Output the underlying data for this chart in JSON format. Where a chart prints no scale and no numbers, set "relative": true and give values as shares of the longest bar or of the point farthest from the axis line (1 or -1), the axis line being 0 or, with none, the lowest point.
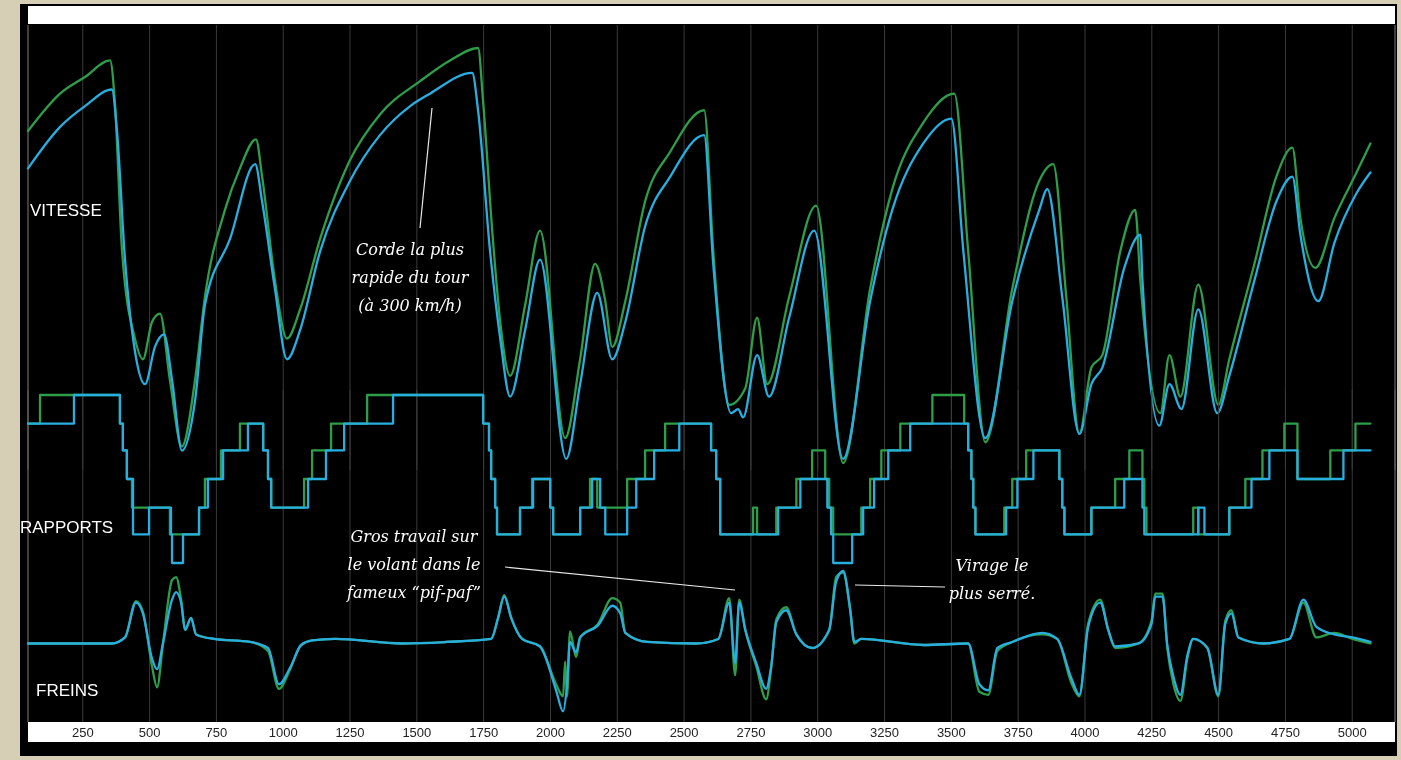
{
  "chart_data": [
    {
      "type": "line",
      "ylabel": "VITESSE",
      "relative": true,
      "xlim": [
        45,
        5160
      ],
      "xticks": [
        250,
        500,
        750,
        1000,
        1250,
        1500,
        1750,
        2000,
        2250,
        2500,
        2750,
        3000,
        3250,
        3500,
        3750,
        4000,
        4250,
        4500,
        4750,
        5000
      ],
      "tick_labels": false,
      "grid": "x",
      "annotations": [
        "Corde la plus\nrapide du tour\n(à 300 km/h)"
      ],
      "series": [
        {
          "color": "#2e9e4a",
          "x": [
            45,
            165,
            258,
            352,
            370,
            397,
            445,
            475,
            509,
            539,
            576,
            621,
            670,
            707,
            782,
            838,
            898,
            921,
            969,
            1014,
            1063,
            1138,
            1250,
            1362,
            1512,
            1624,
            1729,
            1748,
            1782,
            1812,
            1849,
            1905,
            1961,
            2055,
            2111,
            2167,
            2205,
            2231,
            2280,
            2354,
            2448,
            2575,
            2609,
            2669,
            2729,
            2773,
            2811,
            2893,
            2994,
            3095,
            3196,
            3279,
            3395,
            3511,
            3563,
            3627,
            3728,
            3829,
            3881,
            3930,
            3979,
            4024,
            4065,
            4132,
            4188,
            4207,
            4282,
            4316,
            4357,
            4424,
            4499,
            4540,
            4634,
            4716,
            4776,
            4806,
            4862,
            4933,
            5016,
            5068
          ],
          "values": [
            0.8,
            0.89,
            0.93,
            0.97,
            0.87,
            0.51,
            0.3,
            0.25,
            0.34,
            0.36,
            0.2,
            0.04,
            0.2,
            0.4,
            0.61,
            0.71,
            0.78,
            0.69,
            0.44,
            0.3,
            0.37,
            0.54,
            0.73,
            0.84,
            0.92,
            0.97,
            1.0,
            0.87,
            0.56,
            0.34,
            0.21,
            0.38,
            0.56,
            0.06,
            0.25,
            0.48,
            0.39,
            0.28,
            0.39,
            0.63,
            0.75,
            0.85,
            0.51,
            0.14,
            0.18,
            0.35,
            0.19,
            0.4,
            0.62,
            0.0,
            0.42,
            0.66,
            0.82,
            0.89,
            0.51,
            0.05,
            0.42,
            0.68,
            0.72,
            0.4,
            0.07,
            0.23,
            0.26,
            0.51,
            0.61,
            0.44,
            0.12,
            0.26,
            0.16,
            0.43,
            0.14,
            0.25,
            0.48,
            0.69,
            0.76,
            0.59,
            0.47,
            0.59,
            0.7,
            0.77
          ]
        },
        {
          "color": "#29aee0",
          "x": [
            45,
            165,
            258,
            359,
            378,
            408,
            445,
            483,
            520,
            554,
            584,
            621,
            670,
            707,
            801,
            895,
            921,
            969,
            1014,
            1063,
            1138,
            1250,
            1362,
            1475,
            1549,
            1707,
            1729,
            1774,
            1812,
            1849,
            1905,
            1961,
            2059,
            2111,
            2175,
            2231,
            2280,
            2354,
            2448,
            2575,
            2609,
            2676,
            2702,
            2721,
            2773,
            2818,
            2893,
            2987,
            3095,
            3196,
            3279,
            3395,
            3500,
            3545,
            3627,
            3728,
            3829,
            3859,
            3915,
            3979,
            4024,
            4065,
            4147,
            4207,
            4215,
            4278,
            4316,
            4361,
            4424,
            4495,
            4540,
            4634,
            4716,
            4776,
            4806,
            4873,
            4933,
            5016,
            5068
          ],
          "values": [
            0.71,
            0.81,
            0.86,
            0.9,
            0.8,
            0.49,
            0.27,
            0.19,
            0.28,
            0.31,
            0.2,
            0.03,
            0.15,
            0.38,
            0.54,
            0.72,
            0.63,
            0.42,
            0.25,
            0.32,
            0.51,
            0.68,
            0.79,
            0.86,
            0.89,
            0.94,
            0.85,
            0.51,
            0.3,
            0.16,
            0.32,
            0.49,
            0.01,
            0.19,
            0.41,
            0.25,
            0.34,
            0.57,
            0.69,
            0.79,
            0.48,
            0.12,
            0.13,
            0.11,
            0.26,
            0.16,
            0.35,
            0.56,
            0.01,
            0.39,
            0.61,
            0.77,
            0.83,
            0.51,
            0.06,
            0.39,
            0.61,
            0.66,
            0.4,
            0.07,
            0.19,
            0.23,
            0.47,
            0.55,
            0.44,
            0.09,
            0.19,
            0.13,
            0.37,
            0.12,
            0.21,
            0.44,
            0.63,
            0.69,
            0.55,
            0.39,
            0.53,
            0.65,
            0.7
          ]
        }
      ]
    },
    {
      "type": "step",
      "ylabel": "RAPPORTS",
      "relative": true,
      "xlim": [
        45,
        5160
      ],
      "xticks": [
        250,
        500,
        750,
        1000,
        1250,
        1500,
        1750,
        2000,
        2250,
        2500,
        2750,
        3000,
        3250,
        3500,
        3750,
        4000,
        4250,
        4500,
        4750,
        5000
      ],
      "tick_labels": false,
      "grid": "x",
      "series": [
        {
          "color": "#2e9e4a",
          "x": [
            45,
            90,
            389,
            400,
            415,
            434,
            576,
            685,
            707,
            767,
            838,
            925,
            943,
            955,
            1078,
            1108,
            1179,
            1314,
            1748,
            1770,
            1778,
            1793,
            1800,
            1886,
            1931,
            1999,
            2010,
            2111,
            2148,
            2175,
            2287,
            2354,
            2429,
            2601,
            2620,
            2635,
            2758,
            2773,
            2845,
            2920,
            2979,
            3028,
            3043,
            3058,
            3163,
            3196,
            3238,
            3309,
            3429,
            3548,
            3563,
            3575,
            3582,
            3590,
            3698,
            3728,
            3780,
            3904,
            3915,
            3923,
            4024,
            4113,
            4166,
            4215,
            4222,
            4230,
            4405,
            4424,
            4540,
            4600,
            4664,
            4746,
            4795,
            4918,
            5012,
            5068
          ],
          "values": [
            0.83,
            1,
            0.83,
            0.67,
            0.5,
            0.33,
            0.17,
            0.33,
            0.5,
            0.67,
            0.83,
            0.67,
            0.5,
            0.33,
            0.5,
            0.67,
            0.83,
            1,
            0.83,
            0.67,
            0.5,
            0.33,
            0.17,
            0.33,
            0.5,
            0.33,
            0.17,
            0.33,
            0.5,
            0.33,
            0.5,
            0.67,
            0.83,
            0.67,
            0.5,
            0.17,
            0.33,
            0.17,
            0.33,
            0.5,
            0.67,
            0.5,
            0.33,
            0.17,
            0.33,
            0.5,
            0.67,
            0.83,
            1,
            0.83,
            0.67,
            0.5,
            0.33,
            0.17,
            0.33,
            0.5,
            0.67,
            0.5,
            0.33,
            0.17,
            0.33,
            0.5,
            0.67,
            0.5,
            0.33,
            0.17,
            0.33,
            0.17,
            0.33,
            0.5,
            0.67,
            0.83,
            0.5,
            0.67,
            0.83,
            0.83
          ]
        },
        {
          "color": "#29aee0",
          "x": [
            45,
            217,
            389,
            400,
            415,
            438,
            498,
            580,
            584,
            625,
            685,
            718,
            775,
            868,
            925,
            943,
            955,
            1093,
            1160,
            1228,
            1411,
            1748,
            1770,
            1778,
            1793,
            1800,
            1886,
            1935,
            1999,
            2010,
            2111,
            2156,
            2186,
            2205,
            2287,
            2321,
            2388,
            2482,
            2601,
            2620,
            2635,
            2852,
            2935,
            3036,
            3050,
            3058,
            3129,
            3170,
            3211,
            3264,
            3346,
            3563,
            3575,
            3582,
            3590,
            3705,
            3747,
            3807,
            3904,
            3915,
            3923,
            4024,
            4147,
            4215,
            4222,
            4424,
            4447,
            4540,
            4623,
            4690,
            4795,
            4967,
            5068
          ],
          "values": [
            0.83,
            1,
            0.83,
            0.67,
            0.5,
            0.17,
            0.33,
            0.17,
            0,
            0.17,
            0.33,
            0.5,
            0.67,
            0.83,
            0.67,
            0.5,
            0.33,
            0.5,
            0.67,
            0.83,
            1,
            0.83,
            0.67,
            0.5,
            0.33,
            0.17,
            0.33,
            0.5,
            0.33,
            0.17,
            0.33,
            0.5,
            0.33,
            0.17,
            0.33,
            0.5,
            0.67,
            0.83,
            0.67,
            0.5,
            0.17,
            0.33,
            0.5,
            0.33,
            0.17,
            0,
            0.17,
            0.33,
            0.5,
            0.67,
            0.83,
            0.67,
            0.5,
            0.33,
            0.17,
            0.33,
            0.5,
            0.67,
            0.5,
            0.33,
            0.17,
            0.33,
            0.5,
            0.33,
            0.17,
            0.33,
            0.17,
            0.33,
            0.5,
            0.67,
            0.5,
            0.67,
            0.67
          ]
        }
      ]
    },
    {
      "type": "line",
      "ylabel": "FREINS",
      "relative": true,
      "xlim": [
        45,
        5160
      ],
      "xticks": [
        250,
        500,
        750,
        1000,
        1250,
        1500,
        1750,
        2000,
        2250,
        2500,
        2750,
        3000,
        3250,
        3500,
        3750,
        4000,
        4250,
        4500,
        4750,
        5000
      ],
      "tick_labels": "x",
      "grid": "x",
      "annotations": [
        "Gros travail sur\nle volant dans le\nfameux “pif-paf”",
        "Virage le\nplus serré."
      ],
      "series": [
        {
          "color": "#2e9e4a",
          "x": [
            45,
            359,
            408,
            449,
            475,
            509,
            528,
            550,
            584,
            599,
            618,
            633,
            655,
            674,
            741,
            876,
            943,
            984,
            1026,
            1067,
            1108,
            1194,
            1445,
            1610,
            1778,
            1804,
            1827,
            1853,
            1894,
            1961,
            2021,
            2047,
            2055,
            2062,
            2073,
            2096,
            2111,
            2178,
            2231,
            2261,
            2280,
            2362,
            2545,
            2628,
            2669,
            2691,
            2706,
            2729,
            2770,
            2807,
            2826,
            2845,
            2882,
            2920,
            2979,
            3043,
            3069,
            3095,
            3122,
            3137,
            3163,
            3395,
            3563,
            3605,
            3638,
            3672,
            3728,
            3840,
            3896,
            3949,
            3979,
            4012,
            4057,
            4087,
            4113,
            4200,
            4249,
            4263,
            4290,
            4308,
            4331,
            4357,
            4383,
            4405,
            4458,
            4499,
            4525,
            4548,
            4574,
            4668,
            4765,
            4817,
            4866,
            4933,
            5001,
            5068
          ],
          "values": [
            0.52,
            0.52,
            0.56,
            0.8,
            0.73,
            0.37,
            0.23,
            0.52,
            0.94,
            0.96,
            0.81,
            0.61,
            0.69,
            0.58,
            0.55,
            0.53,
            0.47,
            0.22,
            0.35,
            0.51,
            0.54,
            0.55,
            0.52,
            0.53,
            0.55,
            0.69,
            0.84,
            0.69,
            0.55,
            0.5,
            0.25,
            0.17,
            0.4,
            0.17,
            0.6,
            0.43,
            0.56,
            0.65,
            0.82,
            0.79,
            0.59,
            0.53,
            0.52,
            0.55,
            0.82,
            0.31,
            0.81,
            0.61,
            0.37,
            0.15,
            0.36,
            0.68,
            0.76,
            0.58,
            0.49,
            0.61,
            0.96,
            0.99,
            0.73,
            0.52,
            0.55,
            0.51,
            0.52,
            0.2,
            0.18,
            0.47,
            0.53,
            0.58,
            0.55,
            0.26,
            0.17,
            0.65,
            0.81,
            0.61,
            0.49,
            0.52,
            0.67,
            0.85,
            0.85,
            0.49,
            0.25,
            0.14,
            0.42,
            0.55,
            0.49,
            0.17,
            0.67,
            0.74,
            0.56,
            0.52,
            0.55,
            0.79,
            0.56,
            0.59,
            0.55,
            0.52
          ]
        },
        {
          "color": "#29aee0",
          "x": [
            45,
            359,
            408,
            449,
            475,
            509,
            528,
            550,
            584,
            599,
            618,
            633,
            655,
            674,
            741,
            876,
            943,
            984,
            1026,
            1067,
            1108,
            1194,
            1445,
            1610,
            1778,
            1804,
            1827,
            1853,
            1894,
            1961,
            2021,
            2047,
            2062,
            2073,
            2096,
            2111,
            2178,
            2231,
            2261,
            2280,
            2362,
            2545,
            2628,
            2669,
            2691,
            2706,
            2729,
            2770,
            2807,
            2826,
            2845,
            2882,
            2920,
            2979,
            3043,
            3069,
            3095,
            3122,
            3137,
            3163,
            3395,
            3563,
            3605,
            3638,
            3672,
            3728,
            3840,
            3896,
            3949,
            3979,
            4012,
            4057,
            4087,
            4113,
            4200,
            4249,
            4263,
            4290,
            4308,
            4331,
            4357,
            4383,
            4405,
            4458,
            4499,
            4525,
            4548,
            4574,
            4668,
            4765,
            4817,
            4866,
            4933,
            5001,
            5068
          ],
          "values": [
            0.52,
            0.52,
            0.56,
            0.79,
            0.72,
            0.42,
            0.35,
            0.52,
            0.81,
            0.86,
            0.79,
            0.61,
            0.69,
            0.58,
            0.55,
            0.53,
            0.49,
            0.25,
            0.36,
            0.51,
            0.54,
            0.55,
            0.52,
            0.53,
            0.55,
            0.69,
            0.83,
            0.69,
            0.55,
            0.5,
            0.21,
            0.07,
            0.25,
            0.53,
            0.46,
            0.56,
            0.64,
            0.77,
            0.72,
            0.59,
            0.53,
            0.52,
            0.55,
            0.79,
            0.39,
            0.79,
            0.61,
            0.39,
            0.22,
            0.37,
            0.66,
            0.74,
            0.58,
            0.49,
            0.61,
            0.93,
            1.0,
            0.74,
            0.53,
            0.55,
            0.51,
            0.52,
            0.25,
            0.21,
            0.49,
            0.53,
            0.59,
            0.55,
            0.29,
            0.18,
            0.63,
            0.79,
            0.61,
            0.5,
            0.52,
            0.65,
            0.83,
            0.83,
            0.51,
            0.3,
            0.18,
            0.44,
            0.55,
            0.49,
            0.18,
            0.65,
            0.72,
            0.56,
            0.52,
            0.55,
            0.81,
            0.63,
            0.58,
            0.56,
            0.53
          ]
        }
      ]
    }
  ]
}
